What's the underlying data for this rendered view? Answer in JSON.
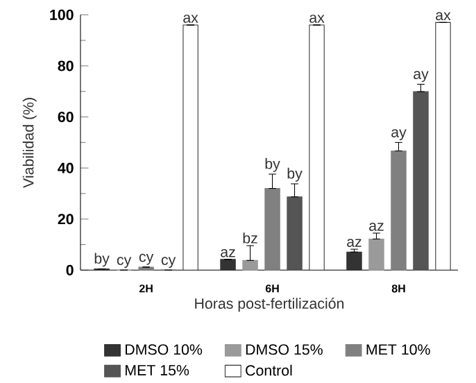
{
  "chart_data": {
    "type": "bar",
    "xlabel": "Horas post-fertilización",
    "ylabel": "Viabilidad (%)",
    "categories": [
      "2H",
      "6H",
      "8H"
    ],
    "ylim": [
      0,
      100
    ],
    "yticks": [
      0,
      20,
      40,
      60,
      80,
      100
    ],
    "legend": "bottom",
    "grid": false,
    "series": [
      {
        "name": "DMSO 10%",
        "color": "#333333",
        "values": [
          0.5,
          4.2,
          7.1
        ],
        "errors": [
          null,
          null,
          [
            7.1,
            8.2
          ]
        ],
        "value_labels": [
          "by",
          "az",
          "az"
        ]
      },
      {
        "name": "DMSO 15%",
        "color": "#9a9a9a",
        "values": [
          0,
          3.8,
          12.2
        ],
        "errors": [
          null,
          [
            3.8,
            9.6
          ],
          [
            12.2,
            14.5
          ]
        ],
        "value_labels": [
          "cy",
          "bz",
          "az"
        ]
      },
      {
        "name": "MET 10%",
        "color": "#808080",
        "values": [
          1.2,
          32,
          46.7
        ],
        "errors": [
          null,
          [
            32,
            37.6
          ],
          [
            46.7,
            50
          ]
        ],
        "value_labels": [
          "cy",
          "by",
          "ay"
        ]
      },
      {
        "name": "MET 15%",
        "color": "#555555",
        "values": [
          0,
          28.7,
          69.9
        ],
        "errors": [
          null,
          [
            28.7,
            33.8
          ],
          [
            69.9,
            72.8
          ]
        ],
        "value_labels": [
          "cy",
          "by",
          "ay"
        ]
      },
      {
        "name": "Control",
        "color": "#ffffff",
        "values": [
          96,
          96,
          97
        ],
        "value_labels": [
          "ax",
          "ax",
          "ax"
        ]
      }
    ]
  }
}
